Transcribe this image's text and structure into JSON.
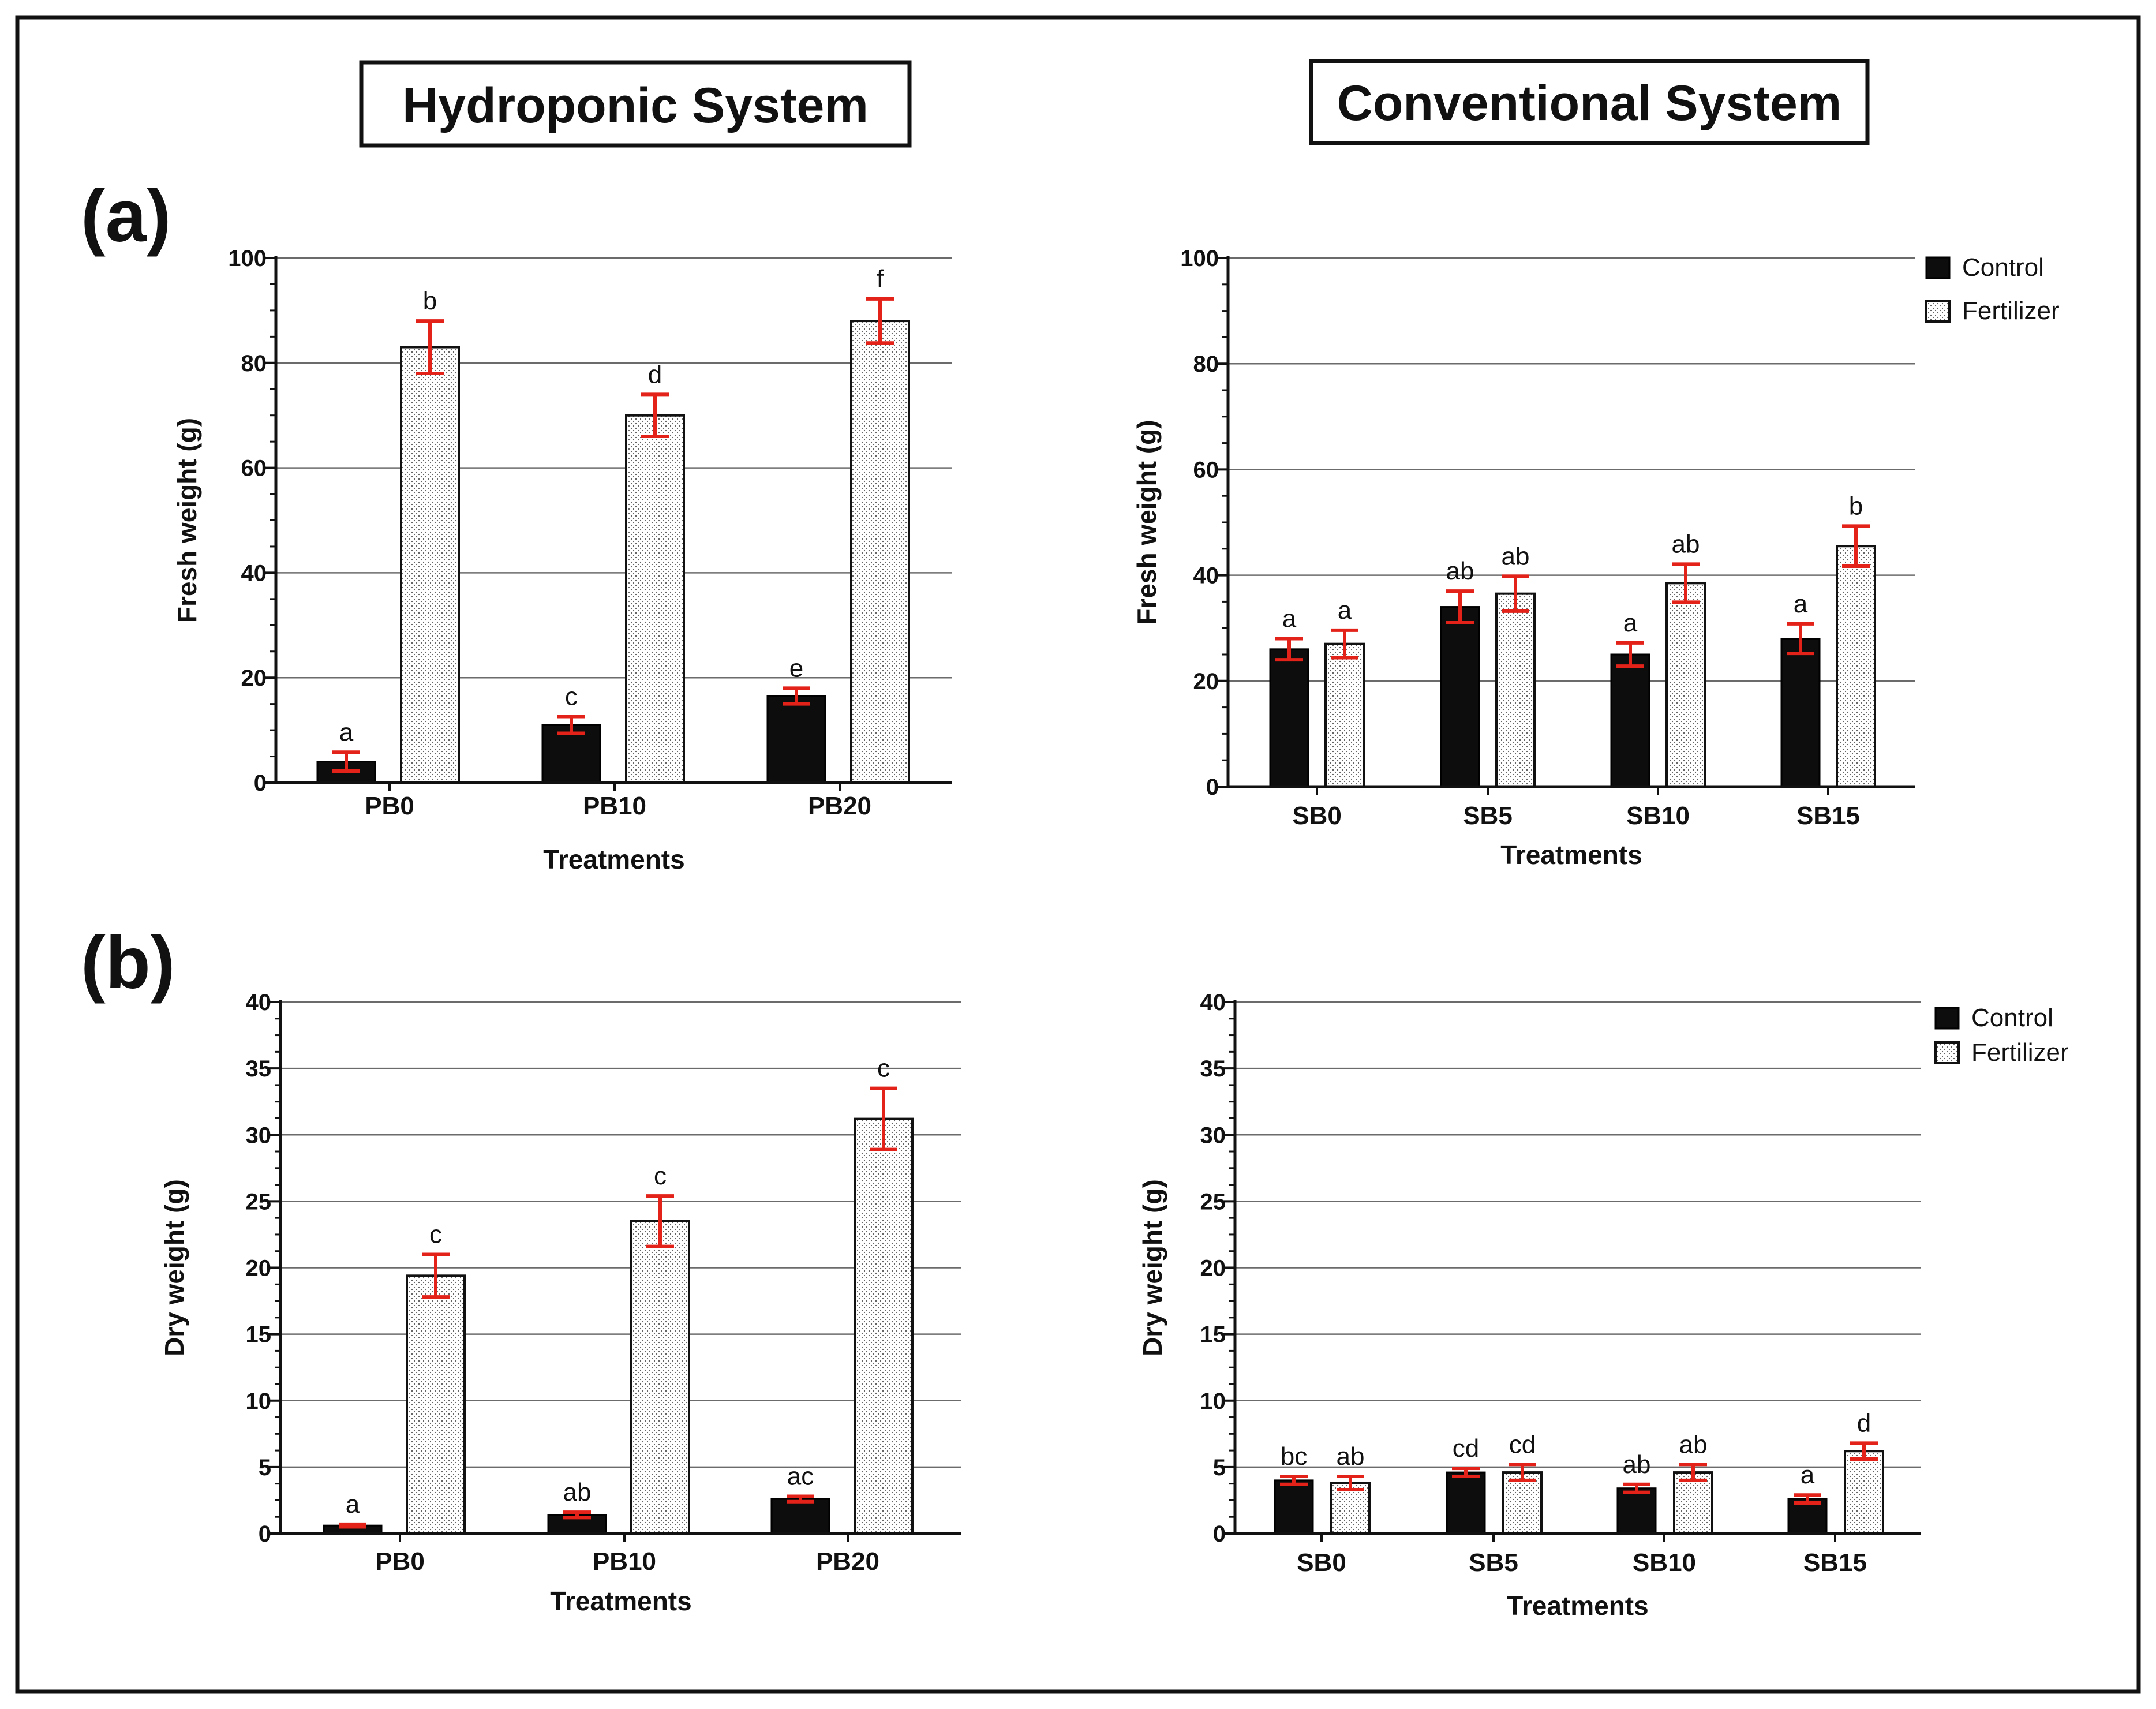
{
  "headers": {
    "left": "Hydroponic System",
    "right": "Conventional System"
  },
  "panel_labels": [
    "(a)",
    "(b)"
  ],
  "legend": [
    "Control",
    "Fertilizer"
  ],
  "colors": {
    "control": "#0d0d0d",
    "fertilizer_fill": "#ffffff",
    "error_bars": "#e32219",
    "grid": "#6b6b6b"
  },
  "chart_data": [
    {
      "id": "hydro-fresh",
      "panel": "(a)",
      "system": "Hydroponic System",
      "type": "bar",
      "title": "",
      "xlabel": "Treatments",
      "ylabel": "Fresh weight (g)",
      "ylim": [
        0,
        100
      ],
      "yticks": [
        0,
        20,
        40,
        60,
        80,
        100
      ],
      "grid": true,
      "legend_position": "none",
      "categories": [
        "PB0",
        "PB10",
        "PB20"
      ],
      "series": [
        {
          "name": "Control",
          "values": [
            4,
            11,
            16.5
          ],
          "errors": [
            1.8,
            1.6,
            1.5
          ],
          "labels": [
            "a",
            "c",
            "e"
          ]
        },
        {
          "name": "Fertilizer",
          "values": [
            83,
            70,
            88
          ],
          "errors": [
            5,
            4,
            4.2
          ],
          "labels": [
            "b",
            "d",
            "f"
          ]
        }
      ]
    },
    {
      "id": "conv-fresh",
      "panel": "(a)",
      "system": "Conventional System",
      "type": "bar",
      "title": "",
      "xlabel": "Treatments",
      "ylabel": "Fresh weight (g)",
      "ylim": [
        0,
        100
      ],
      "yticks": [
        0,
        20,
        40,
        60,
        80,
        100
      ],
      "grid": true,
      "legend_position": "top-right",
      "categories": [
        "SB0",
        "SB5",
        "SB10",
        "SB15"
      ],
      "series": [
        {
          "name": "Control",
          "values": [
            26,
            34,
            25,
            28
          ],
          "errors": [
            2,
            3,
            2.2,
            2.8
          ],
          "labels": [
            "a",
            "ab",
            "a",
            "a"
          ]
        },
        {
          "name": "Fertilizer",
          "values": [
            27,
            36.5,
            38.5,
            45.5
          ],
          "errors": [
            2.6,
            3.3,
            3.6,
            3.8
          ],
          "labels": [
            "a",
            "ab",
            "ab",
            "b"
          ]
        }
      ]
    },
    {
      "id": "hydro-dry",
      "panel": "(b)",
      "system": "Hydroponic System",
      "type": "bar",
      "title": "",
      "xlabel": "Treatments",
      "ylabel": "Dry weight (g)",
      "ylim": [
        0,
        40
      ],
      "yticks": [
        0,
        5,
        10,
        15,
        20,
        25,
        30,
        35,
        40
      ],
      "grid": true,
      "legend_position": "none",
      "categories": [
        "PB0",
        "PB10",
        "PB20"
      ],
      "series": [
        {
          "name": "Control",
          "values": [
            0.6,
            1.4,
            2.6
          ],
          "errors": [
            0.1,
            0.2,
            0.2
          ],
          "labels": [
            "a",
            "ab",
            "ac"
          ]
        },
        {
          "name": "Fertilizer",
          "values": [
            19.4,
            23.5,
            31.2
          ],
          "errors": [
            1.6,
            1.9,
            2.3
          ],
          "labels": [
            "c",
            "c",
            "c"
          ]
        }
      ]
    },
    {
      "id": "conv-dry",
      "panel": "(b)",
      "system": "Conventional System",
      "type": "bar",
      "title": "",
      "xlabel": "Treatments",
      "ylabel": "Dry weight (g)",
      "ylim": [
        0,
        40
      ],
      "yticks": [
        0,
        5,
        10,
        15,
        20,
        25,
        30,
        35,
        40
      ],
      "grid": true,
      "legend_position": "top-right",
      "categories": [
        "SB0",
        "SB5",
        "SB10",
        "SB15"
      ],
      "series": [
        {
          "name": "Control",
          "values": [
            4,
            4.6,
            3.4,
            2.6
          ],
          "errors": [
            0.3,
            0.3,
            0.3,
            0.3
          ],
          "labels": [
            "bc",
            "cd",
            "ab",
            "a"
          ]
        },
        {
          "name": "Fertilizer",
          "values": [
            3.8,
            4.6,
            4.6,
            6.2
          ],
          "errors": [
            0.5,
            0.6,
            0.6,
            0.6
          ],
          "labels": [
            "ab",
            "cd",
            "ab",
            "d"
          ]
        }
      ]
    }
  ]
}
